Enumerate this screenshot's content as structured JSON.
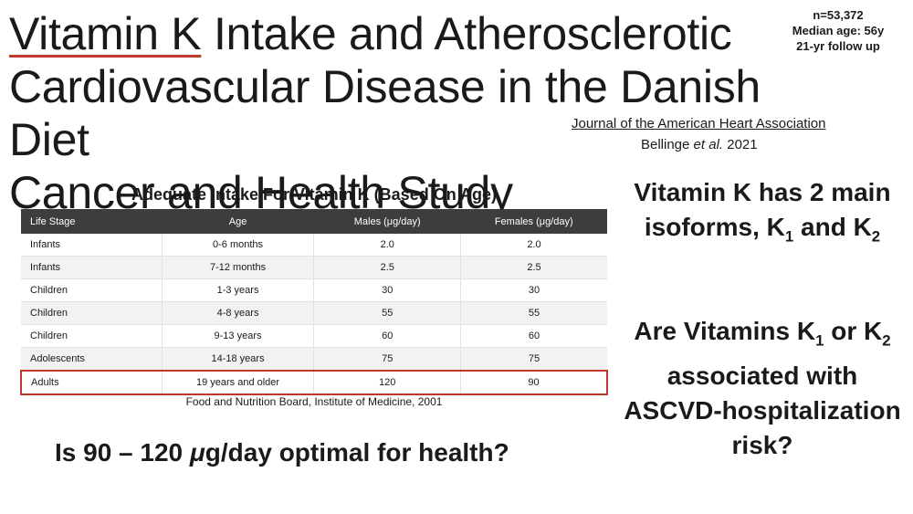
{
  "title": {
    "underlined": "Vitamin K",
    "line1_rest": " Intake and Atherosclerotic",
    "line2": "Cardiovascular Disease in the Danish Diet",
    "line3": "Cancer and Health Study"
  },
  "stats": {
    "n": "n=53,372",
    "median_age": "Median age: 56y",
    "follow_up": "21-yr follow up"
  },
  "citation": {
    "journal": "Journal of the American Heart Association",
    "authors_prefix": "Bellinge ",
    "et_al": "et al.",
    "year": " 2021"
  },
  "table": {
    "title": "Adequate Intake For Vitamin K (Based On Age)",
    "headers": [
      "Life Stage",
      "Age",
      "Males (μg/day)",
      "Females (μg/day)"
    ],
    "rows": [
      [
        "Infants",
        "0-6 months",
        "2.0",
        "2.0"
      ],
      [
        "Infants",
        "7-12 months",
        "2.5",
        "2.5"
      ],
      [
        "Children",
        "1-3 years",
        "30",
        "30"
      ],
      [
        "Children",
        "4-8 years",
        "55",
        "55"
      ],
      [
        "Children",
        "9-13 years",
        "60",
        "60"
      ],
      [
        "Adolescents",
        "14-18 years",
        "75",
        "75"
      ],
      [
        "Adults",
        "19 years and older",
        "120",
        "90"
      ]
    ],
    "highlight_color": "#c0392b",
    "source": "Food and Nutrition Board, Institute of Medicine, 2001"
  },
  "isoforms": {
    "part1": "Vitamin K has 2 main isoforms, K",
    "sub1": "1",
    "part2": " and K",
    "sub2": "2"
  },
  "question": {
    "part1": "Are Vitamins K",
    "sub1": "1",
    "part2": " or K",
    "sub2": "2",
    "part3": " associated with ASCVD-hospitalization risk?"
  },
  "bottom_question": {
    "before": "Is 90 – 120 ",
    "mu": "μ",
    "after": "g/day optimal for health?"
  }
}
